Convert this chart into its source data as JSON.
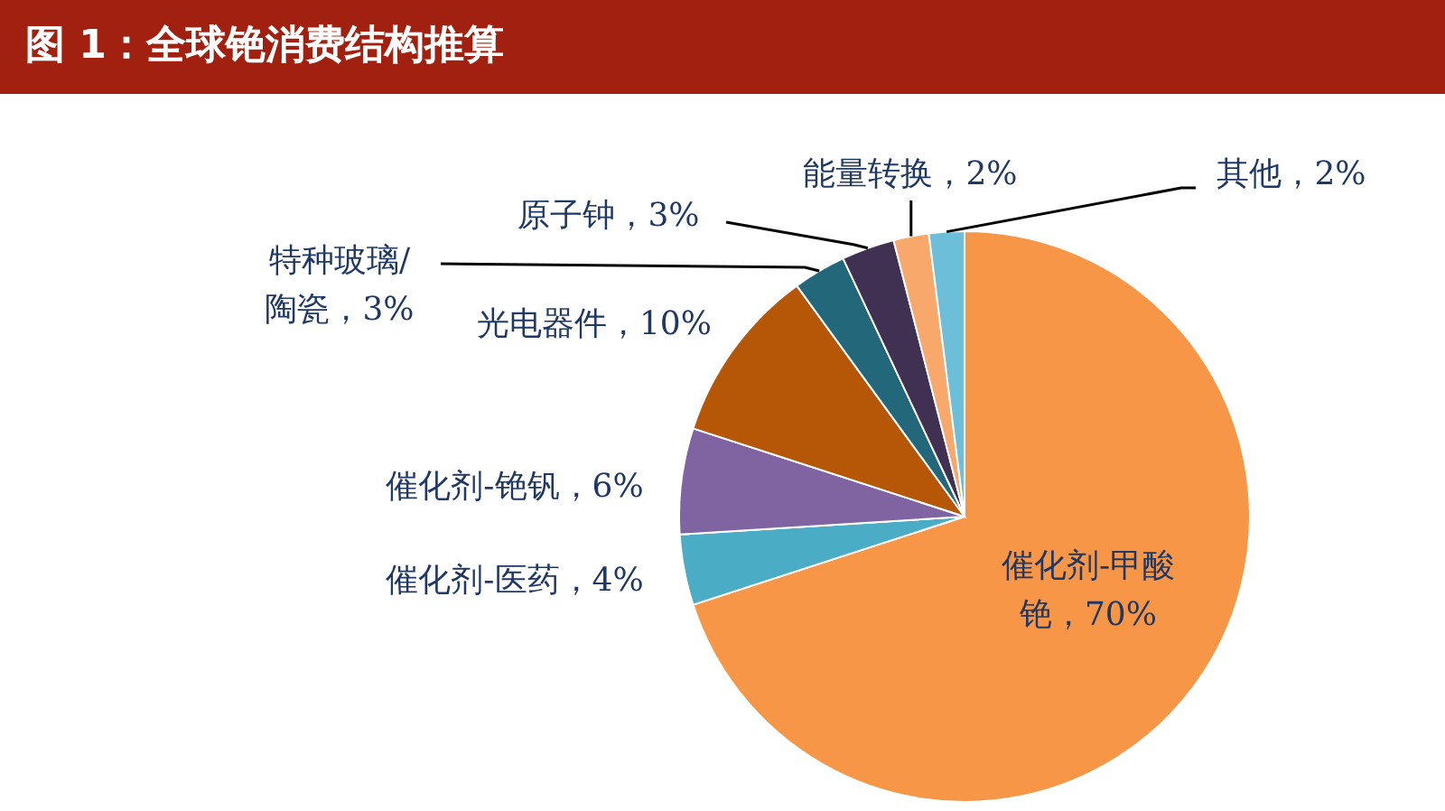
{
  "chart_data": {
    "type": "pie",
    "title": "图 1：全球铯消费结构推算",
    "categories": [
      "催化剂-甲酸铯",
      "催化剂-医药",
      "催化剂-铯钒",
      "光电器件",
      "特种玻璃/陶瓷",
      "原子钟",
      "能量转换",
      "其他"
    ],
    "values": [
      70,
      4,
      6,
      10,
      3,
      3,
      2,
      2
    ],
    "value_labels": [
      "70%",
      "4%",
      "6%",
      "10%",
      "3%",
      "3%",
      "2%",
      "2%"
    ],
    "colors": [
      "#f79646",
      "#4bacc6",
      "#8064a2",
      "#b65708",
      "#23687a",
      "#403152",
      "#f9a86b",
      "#6dbed8"
    ]
  }
}
